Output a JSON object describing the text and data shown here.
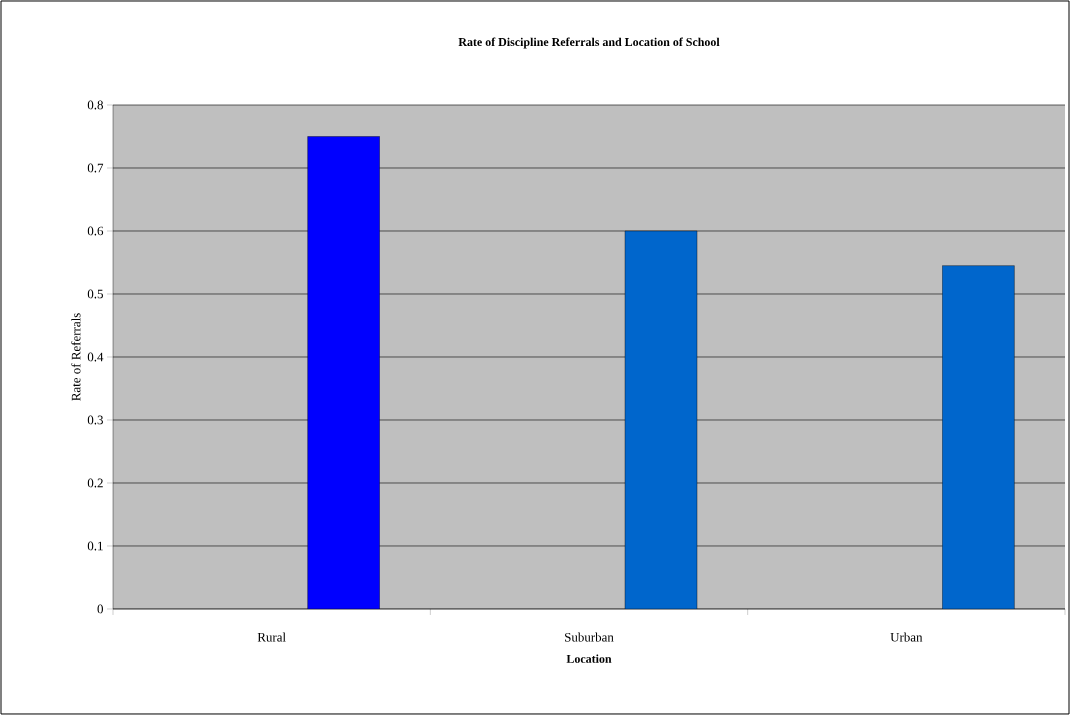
{
  "chart_data": {
    "type": "bar",
    "title": "Rate of Discipline Referrals and Location of School",
    "xlabel": "Location",
    "ylabel": "Rate of Referrals",
    "categories": [
      "Rural",
      "Suburban",
      "Urban"
    ],
    "values": [
      0.75,
      0.6,
      0.545
    ],
    "colors": [
      "#0000ff",
      "#0066cc",
      "#0066cc"
    ],
    "ylim": [
      0,
      0.8
    ],
    "yticks": [
      0,
      0.1,
      0.2,
      0.3,
      0.4,
      0.5,
      0.6,
      0.7,
      0.8
    ],
    "grid": "y"
  }
}
